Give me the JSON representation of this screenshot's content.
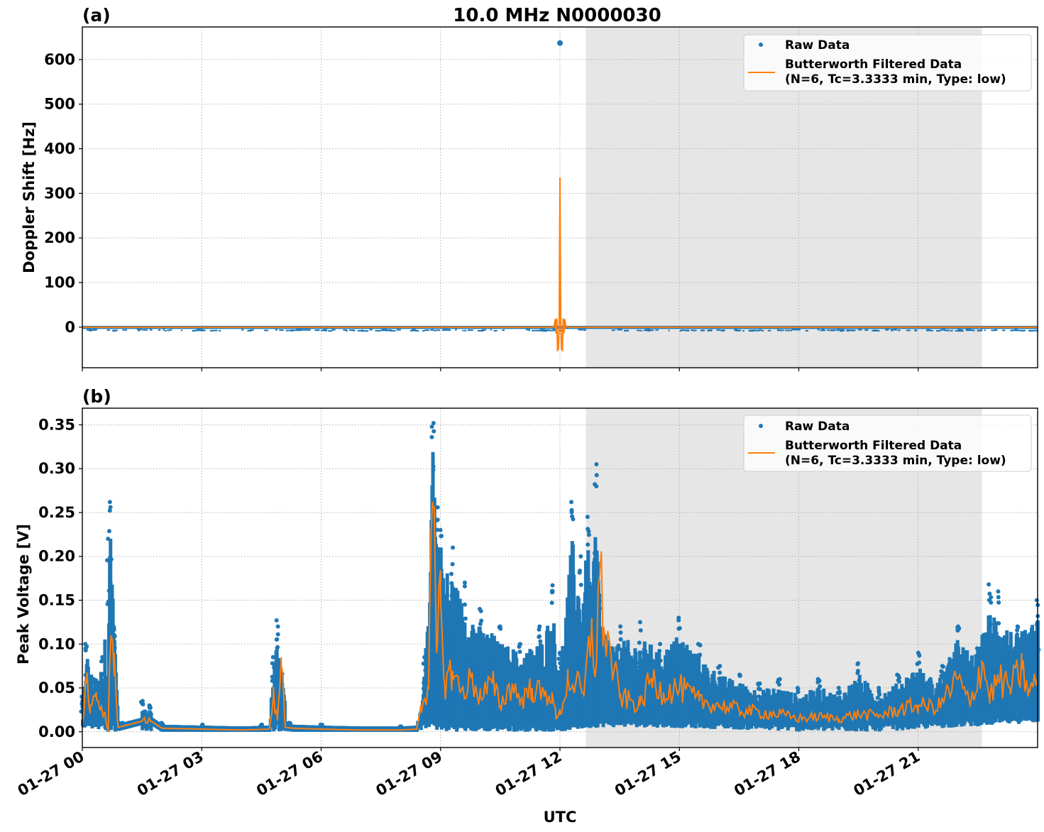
{
  "figure": {
    "suptitle": "10.0 MHz N0000030",
    "xlabel": "UTC",
    "x_ticks": [
      "01-27 00",
      "01-27 03",
      "01-27 06",
      "01-27 09",
      "01-27 12",
      "01-27 15",
      "01-27 18",
      "01-27 21"
    ],
    "shaded_region_hours": [
      12.65,
      22.6
    ],
    "colors": {
      "raw": "#1f77b4",
      "filtered": "#ff7f0e",
      "shade": "#e6e6e6",
      "grid": "#b0b0b0"
    }
  },
  "panels": [
    {
      "label": "(a)",
      "ylabel": "Doppler Shift [Hz]",
      "y_ticks": [
        "600",
        "500",
        "400",
        "300",
        "200",
        "100",
        "0"
      ],
      "legend": {
        "raw_label": "Raw Data",
        "filtered_label_line1": "Butterworth Filtered Data",
        "filtered_label_line2": "(N=6, Tc=3.3333 min, Type: low)"
      }
    },
    {
      "label": "(b)",
      "ylabel": "Peak Voltage [V]",
      "y_ticks": [
        "0.35",
        "0.30",
        "0.25",
        "0.20",
        "0.15",
        "0.10",
        "0.05",
        "0.00"
      ],
      "legend": {
        "raw_label": "Raw Data",
        "filtered_label_line1": "Butterworth Filtered Data",
        "filtered_label_line2": "(N=6, Tc=3.3333 min, Type: low)"
      }
    }
  ],
  "chart_data": [
    {
      "type": "scatter+line",
      "title": "10.0 MHz N0000030",
      "panel": "(a)",
      "xlabel": "UTC",
      "ylabel": "Doppler Shift [Hz]",
      "x_unit": "hours since 01-27 00:00 UTC",
      "xlim": [
        0,
        24
      ],
      "ylim": [
        -91,
        673
      ],
      "grid": true,
      "legend_position": "upper right",
      "legend": [
        "Raw Data",
        "Butterworth Filtered Data (N=6, Tc=3.3333 min, Type: low)"
      ],
      "shaded_span_hours": [
        12.65,
        22.6
      ],
      "series": [
        {
          "name": "Raw Data",
          "style": "scatter",
          "description": "Dense band near 0 Hz (approx -4 to +3 Hz) for whole day; single outlier at ~12.0 h",
          "x": [
            0,
            3,
            6,
            9,
            12,
            12.0,
            15,
            18,
            21,
            24
          ],
          "y": [
            0,
            0,
            0,
            0,
            0,
            637,
            0,
            0,
            0,
            0
          ]
        },
        {
          "name": "Butterworth Filtered Data",
          "style": "line",
          "description": "Flat near 0 Hz except ringing spike around 12.0 h",
          "x": [
            0,
            11.8,
            11.9,
            11.95,
            12.0,
            12.05,
            12.1,
            12.2,
            24
          ],
          "y": [
            0,
            0,
            20,
            -52,
            336,
            -52,
            20,
            0,
            0
          ]
        }
      ]
    },
    {
      "type": "scatter+line",
      "panel": "(b)",
      "xlabel": "UTC",
      "ylabel": "Peak Voltage [V]",
      "x_unit": "hours since 01-27 00:00 UTC",
      "xlim": [
        0,
        24
      ],
      "ylim": [
        -0.018,
        0.369
      ],
      "grid": true,
      "legend_position": "upper right",
      "legend": [
        "Raw Data",
        "Butterworth Filtered Data (N=6, Tc=3.3333 min, Type: low)"
      ],
      "shaded_span_hours": [
        12.65,
        22.6
      ],
      "series": [
        {
          "name": "Raw Data (upper envelope)",
          "style": "scatter",
          "x": [
            0,
            0.1,
            0.3,
            0.5,
            0.65,
            0.7,
            0.8,
            0.9,
            1.0,
            1.5,
            1.7,
            2.0,
            3.0,
            4.5,
            4.8,
            4.9,
            5.0,
            5.2,
            6.0,
            8.0,
            8.5,
            8.6,
            8.8,
            8.9,
            9.0,
            9.3,
            9.6,
            10.0,
            10.5,
            11.0,
            11.5,
            11.8,
            12.0,
            12.3,
            12.5,
            12.7,
            12.8,
            12.9,
            13.0,
            13.3,
            13.5,
            14.0,
            14.5,
            15.0,
            15.5,
            16.0,
            16.5,
            17.0,
            17.5,
            18.0,
            18.5,
            19.0,
            19.5,
            20.0,
            20.5,
            21.0,
            21.3,
            21.6,
            22.0,
            22.5,
            22.8,
            23.0,
            23.5,
            24.0
          ],
          "y": [
            0.04,
            0.1,
            0.06,
            0.085,
            0.22,
            0.262,
            0.12,
            0.01,
            0.01,
            0.035,
            0.03,
            0.01,
            0.008,
            0.008,
            0.085,
            0.127,
            0.06,
            0.01,
            0.008,
            0.006,
            0.01,
            0.085,
            0.352,
            0.256,
            0.23,
            0.21,
            0.17,
            0.14,
            0.12,
            0.1,
            0.12,
            0.167,
            0.09,
            0.262,
            0.2,
            0.245,
            0.16,
            0.305,
            0.12,
            0.095,
            0.12,
            0.125,
            0.1,
            0.13,
            0.1,
            0.075,
            0.065,
            0.055,
            0.06,
            0.05,
            0.06,
            0.05,
            0.078,
            0.05,
            0.065,
            0.09,
            0.06,
            0.075,
            0.12,
            0.095,
            0.168,
            0.16,
            0.12,
            0.15
          ]
        },
        {
          "name": "Raw Data (lower envelope)",
          "style": "scatter",
          "x": [
            0,
            0.8,
            1.0,
            3.0,
            6.0,
            8.5,
            8.7,
            9.0,
            10.0,
            11.0,
            12.0,
            13.0,
            14.0,
            16.0,
            18.0,
            20.0,
            22.0,
            24.0
          ],
          "y": [
            0.005,
            0.0,
            0.0,
            0.0,
            0.0,
            0.0,
            0.005,
            0.0,
            0.0,
            0.0,
            0.0,
            0.005,
            0.005,
            0.003,
            0.0,
            0.0,
            0.005,
            0.01
          ]
        },
        {
          "name": "Butterworth Filtered Data",
          "style": "line",
          "x": [
            0,
            0.1,
            0.2,
            0.35,
            0.45,
            0.55,
            0.65,
            0.7,
            0.8,
            0.9,
            1.5,
            1.7,
            2.0,
            3.0,
            4.0,
            4.7,
            4.8,
            4.9,
            5.0,
            5.1,
            5.3,
            6.0,
            7.0,
            8.0,
            8.4,
            8.5,
            8.7,
            8.8,
            8.9,
            9.0,
            9.1,
            9.3,
            9.5,
            9.8,
            10.0,
            10.3,
            10.5,
            10.8,
            11.0,
            11.3,
            11.6,
            11.8,
            11.9,
            12.0,
            12.2,
            12.4,
            12.6,
            12.8,
            12.9,
            13.0,
            13.1,
            13.5,
            14.0,
            14.3,
            14.6,
            15.0,
            15.5,
            16.0,
            16.5,
            17.0,
            17.5,
            18.0,
            18.5,
            19.0,
            19.5,
            20.0,
            20.5,
            21.0,
            21.5,
            22.0,
            22.3,
            22.6,
            22.8,
            23.0,
            23.3,
            23.6,
            23.8,
            24.0
          ],
          "y": [
            0.01,
            0.055,
            0.03,
            0.045,
            0.025,
            0.02,
            0.0,
            0.09,
            0.09,
            0.005,
            0.012,
            0.013,
            0.004,
            0.003,
            0.002,
            0.003,
            0.04,
            0.013,
            0.085,
            0.005,
            0.004,
            0.003,
            0.002,
            0.002,
            0.003,
            0.03,
            0.05,
            0.258,
            0.09,
            0.15,
            0.055,
            0.07,
            0.045,
            0.06,
            0.04,
            0.055,
            0.03,
            0.055,
            0.035,
            0.05,
            0.04,
            0.045,
            0.015,
            0.02,
            0.06,
            0.055,
            0.04,
            0.12,
            0.07,
            0.183,
            0.12,
            0.04,
            0.03,
            0.06,
            0.045,
            0.05,
            0.035,
            0.03,
            0.025,
            0.022,
            0.02,
            0.015,
            0.017,
            0.015,
            0.02,
            0.018,
            0.025,
            0.03,
            0.028,
            0.06,
            0.03,
            0.08,
            0.04,
            0.06,
            0.05,
            0.07,
            0.045,
            0.06
          ]
        }
      ]
    }
  ]
}
